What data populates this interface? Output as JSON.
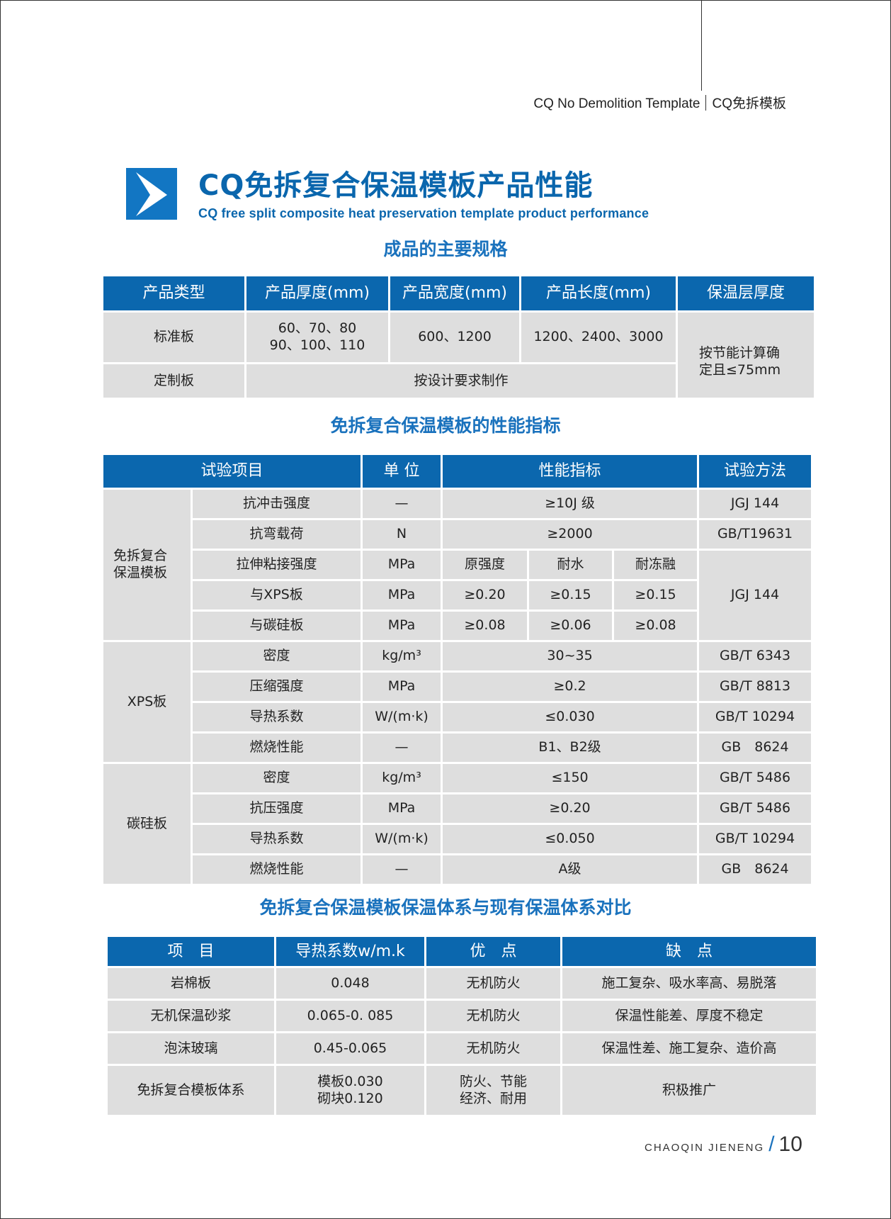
{
  "header": {
    "en": "CQ No Demolition Template",
    "cn": "CQ免拆模板"
  },
  "title": {
    "cn": "CQ免拆复合保温模板产品性能",
    "en": "CQ free split composite heat preservation template product performance",
    "icon": "chevron-right-icon",
    "accent": "#0a66ad"
  },
  "spec": {
    "heading": "成品的主要规格",
    "columns": [
      "产品类型",
      "产品厚度(mm)",
      "产品宽度(mm)",
      "产品长度(mm)",
      "保温层厚度"
    ],
    "rows": [
      {
        "type": "标准板",
        "thickness_1": "60、70、80",
        "thickness_2": "90、100、110",
        "width": "600、1200",
        "length": "1200、2400、3000"
      },
      {
        "type": "定制板",
        "custom": "按设计要求制作"
      }
    ],
    "insulation_1": "按节能计算确",
    "insulation_2": "定且≤75mm"
  },
  "perf": {
    "heading": "免拆复合保温模板的性能指标",
    "columns": [
      "试验项目",
      "单 位",
      "性能指标",
      "试验方法"
    ],
    "groups": [
      "免拆复合保温模板",
      "XPS板",
      "碳硅板"
    ],
    "rows": [
      {
        "item": "抗冲击强度",
        "unit": "—",
        "value": "≥10J 级",
        "method": "JGJ 144"
      },
      {
        "item": "抗弯载荷",
        "unit": "N",
        "value": "≥2000",
        "method": "GB/T19631"
      },
      {
        "item": "拉伸粘接强度",
        "unit": "MPa",
        "v1": "原强度",
        "v2": "耐水",
        "v3": "耐冻融",
        "method": "JGJ 144"
      },
      {
        "item": "与XPS板",
        "unit": "MPa",
        "v1": "≥0.20",
        "v2": "≥0.15",
        "v3": "≥0.15"
      },
      {
        "item": "与碳硅板",
        "unit": "MPa",
        "v1": "≥0.08",
        "v2": "≥0.06",
        "v3": "≥0.08"
      },
      {
        "item": "密度",
        "unit": "kg/m³",
        "value": "30~35",
        "method": "GB/T 6343"
      },
      {
        "item": "压缩强度",
        "unit": "MPa",
        "value": "≥0.2",
        "method": "GB/T 8813"
      },
      {
        "item": "导热系数",
        "unit": "W/(m·k)",
        "value": "≤0.030",
        "method": "GB/T 10294"
      },
      {
        "item": "燃烧性能",
        "unit": "—",
        "value": "B1、B2级",
        "method": "GB　8624"
      },
      {
        "item": "密度",
        "unit": "kg/m³",
        "value": "≤150",
        "method": "GB/T 5486"
      },
      {
        "item": "抗压强度",
        "unit": "MPa",
        "value": "≥0.20",
        "method": "GB/T 5486"
      },
      {
        "item": "导热系数",
        "unit": "W/(m·k)",
        "value": "≤0.050",
        "method": "GB/T 10294"
      },
      {
        "item": "燃烧性能",
        "unit": "—",
        "value": "A级",
        "method": "GB　8624"
      }
    ]
  },
  "compare": {
    "heading": "免拆复合保温模板保温体系与现有保温体系对比",
    "columns": [
      "项　目",
      "导热系数w/m.k",
      "优　点",
      "缺　点"
    ],
    "rows": [
      {
        "item": "岩棉板",
        "k1": "0.048",
        "pro1": "无机防火",
        "con": "施工复杂、吸水率高、易脱落"
      },
      {
        "item": "无机保温砂浆",
        "k1": "0.065-0. 085",
        "pro1": "无机防火",
        "con": "保温性能差、厚度不稳定"
      },
      {
        "item": "泡沫玻璃",
        "k1": "0.45-0.065",
        "pro1": "无机防火",
        "con": "保温性差、施工复杂、造价高"
      },
      {
        "item": "免拆复合模板体系",
        "k1": "模板0.030",
        "k2": "砌块0.120",
        "pro1": "防火、节能",
        "pro2": "经济、耐用",
        "con": "积极推广"
      }
    ]
  },
  "footer": {
    "brand": "CHAOQIN JIENENG",
    "slash": "/",
    "page": "10"
  }
}
